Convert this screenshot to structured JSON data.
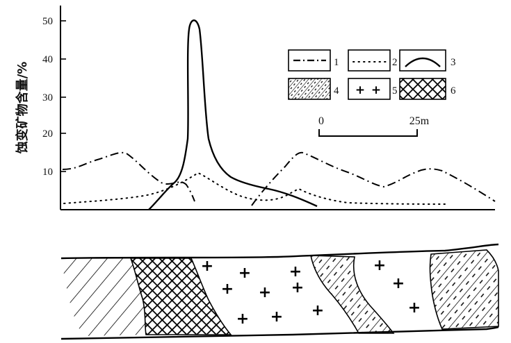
{
  "y_axis": {
    "label": "蚀变矿物含量/%",
    "ticks": [
      "50",
      "40",
      "30",
      "20",
      "10"
    ]
  },
  "legend": [
    {
      "key": "1",
      "style": "dash-dot-line"
    },
    {
      "key": "2",
      "style": "dotted-line"
    },
    {
      "key": "3",
      "style": "solid-curve"
    },
    {
      "key": "4",
      "style": "diagonal-hatch-with-dashes"
    },
    {
      "key": "5",
      "style": "crosses"
    },
    {
      "key": "6",
      "style": "cross-hatch"
    }
  ],
  "scale_bar": {
    "start": "0",
    "end": "25m"
  },
  "section": {
    "zones": [
      "4",
      "6",
      "5",
      "4",
      "5",
      "4"
    ]
  }
}
